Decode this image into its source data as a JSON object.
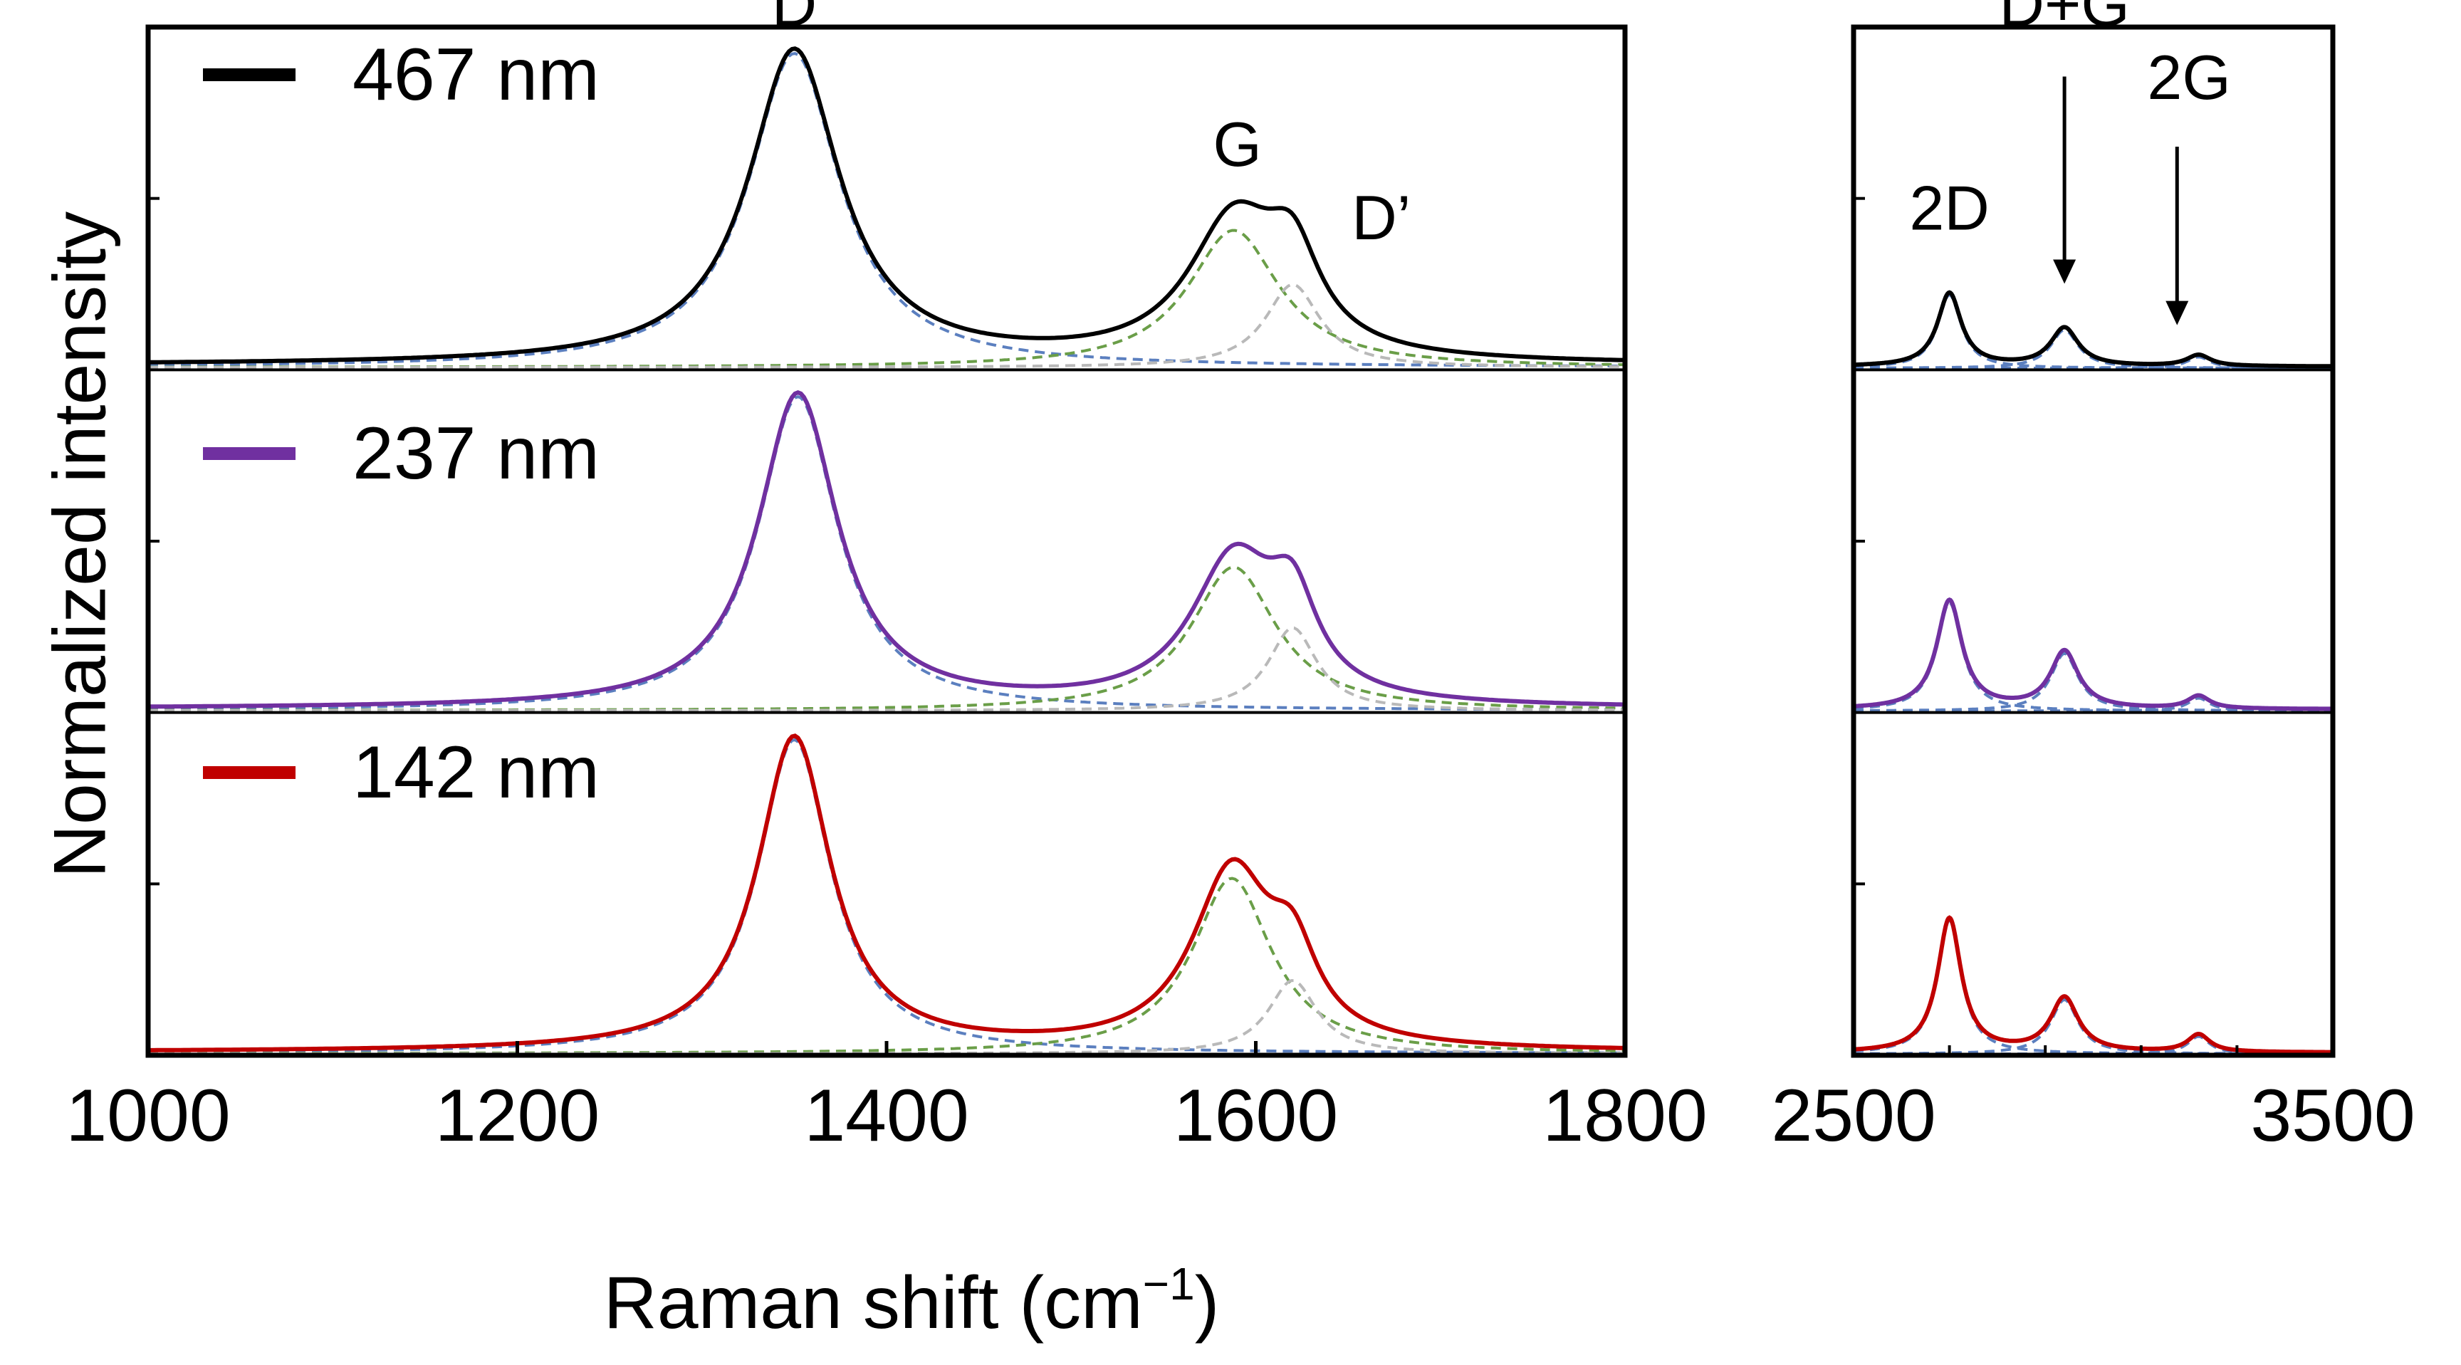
{
  "chart_data": {
    "type": "line",
    "ylabel": "Normalized intensity",
    "xlabel_main": "Raman shift (cm",
    "xlabel_sup": "−1",
    "xlabel_close": ")",
    "legend": [
      {
        "label": "467 nm",
        "color": "#000000"
      },
      {
        "label": "237 nm",
        "color": "#7030a0"
      },
      {
        "label": "142 nm",
        "color": "#c00000"
      }
    ],
    "fit_colors": {
      "D": "#5b7fbf",
      "G": "#6a9e48",
      "D_prime": "#b9b9b9",
      "overtone": "#5b7fbf"
    },
    "panels": [
      {
        "name": "first-order",
        "xlim": [
          1000,
          1800
        ],
        "xticks": [
          1000,
          1200,
          1400,
          1600,
          1800
        ],
        "tick_labels": [
          "1000",
          "1200",
          "1400",
          "1600",
          "1800"
        ],
        "peak_labels": [
          {
            "text": "D",
            "x": 1350,
            "y": 1.08,
            "trace": 0
          },
          {
            "text": "G",
            "x": 1590,
            "y": 0.64,
            "trace": 0
          },
          {
            "text": "D’",
            "x": 1668,
            "y": 0.41,
            "trace": 0
          }
        ],
        "series": [
          {
            "name": "467 nm",
            "baseline": 0.015,
            "peaks": [
              {
                "label": "D",
                "center": 1350,
                "amp": 0.985,
                "width": 30
              },
              {
                "label": "G",
                "center": 1588,
                "amp": 0.43,
                "width": 30
              },
              {
                "label": "D_prime",
                "center": 1620,
                "amp": 0.26,
                "width": 18
              }
            ]
          },
          {
            "name": "237 nm",
            "baseline": 0.012,
            "peaks": [
              {
                "label": "D",
                "center": 1352,
                "amp": 0.985,
                "width": 26
              },
              {
                "label": "G",
                "center": 1588,
                "amp": 0.45,
                "width": 28
              },
              {
                "label": "D_prime",
                "center": 1620,
                "amp": 0.26,
                "width": 16
              }
            ]
          },
          {
            "name": "142 nm",
            "baseline": 0.01,
            "peaks": [
              {
                "label": "D",
                "center": 1350,
                "amp": 0.985,
                "width": 24
              },
              {
                "label": "G",
                "center": 1587,
                "amp": 0.55,
                "width": 26
              },
              {
                "label": "D_prime",
                "center": 1620,
                "amp": 0.23,
                "width": 16
              }
            ]
          }
        ]
      },
      {
        "name": "second-order",
        "xlim": [
          2500,
          3500
        ],
        "xticks": [
          2500,
          3500
        ],
        "minor_xticks": [
          2700,
          2900,
          3100,
          3300
        ],
        "tick_labels": [
          "2500",
          "3500"
        ],
        "peak_labels": [
          {
            "text": "2D",
            "x": 2700,
            "y": 0.44
          },
          {
            "text": "D+G",
            "x": 2940,
            "y": 1.08
          },
          {
            "text": "2G",
            "x": 3200,
            "y": 0.85
          }
        ],
        "arrows": [
          {
            "x": 2940,
            "y_top": 0.92,
            "y_bottom": 0.27
          },
          {
            "x": 3175,
            "y_top": 0.7,
            "y_bottom": 0.14
          }
        ],
        "series": [
          {
            "name": "467 nm",
            "baseline": 0.01,
            "peaks": [
              {
                "label": "2D",
                "center": 2700,
                "amp": 0.23,
                "width": 30
              },
              {
                "label": "D+G",
                "center": 2940,
                "amp": 0.12,
                "width": 35
              },
              {
                "label": "2G",
                "center": 3220,
                "amp": 0.035,
                "width": 30
              }
            ]
          },
          {
            "name": "237 nm",
            "baseline": 0.01,
            "peaks": [
              {
                "label": "2D",
                "center": 2700,
                "amp": 0.34,
                "width": 32
              },
              {
                "label": "D+G",
                "center": 2940,
                "amp": 0.18,
                "width": 35
              },
              {
                "label": "2G",
                "center": 3220,
                "amp": 0.04,
                "width": 28
              }
            ]
          },
          {
            "name": "142 nm",
            "baseline": 0.008,
            "peaks": [
              {
                "label": "2D",
                "center": 2700,
                "amp": 0.42,
                "width": 30
              },
              {
                "label": "D+G",
                "center": 2940,
                "amp": 0.17,
                "width": 35
              },
              {
                "label": "2G",
                "center": 3220,
                "amp": 0.055,
                "width": 28
              }
            ]
          }
        ]
      }
    ]
  }
}
